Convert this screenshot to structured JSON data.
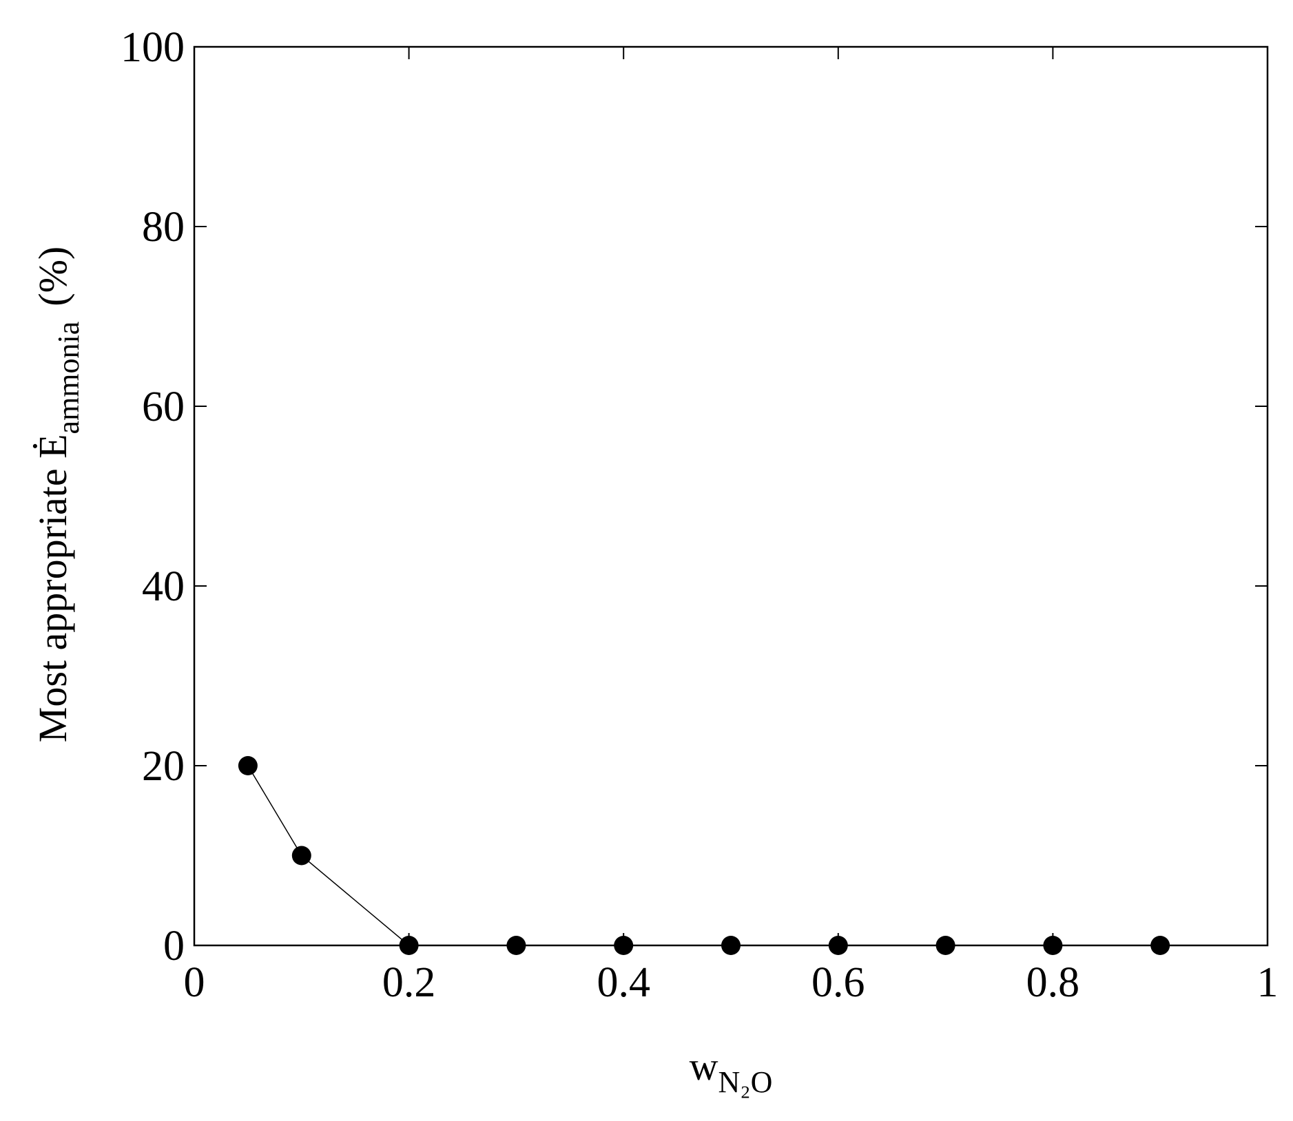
{
  "chart_data": {
    "type": "line",
    "xlabel": "w",
    "xlabel_subscript": "N₂O",
    "ylabel": "Most appropriate Ė",
    "ylabel_subscript": "ammonia",
    "ylabel_unit": "(%)",
    "x": [
      0.05,
      0.1,
      0.2,
      0.3,
      0.4,
      0.5,
      0.6,
      0.7,
      0.8,
      0.9
    ],
    "series": [
      {
        "color": "#000000",
        "values": [
          20,
          10,
          0,
          0,
          0,
          0,
          0,
          0,
          0,
          0
        ]
      }
    ],
    "xlim": [
      0,
      1
    ],
    "xticks": [
      0,
      0.2,
      0.4,
      0.6,
      0.8,
      1
    ],
    "ylim": [
      0,
      100
    ],
    "yticks": [
      0,
      20,
      40,
      60,
      80,
      100
    ],
    "grid": false,
    "markers": "filled-circle"
  }
}
